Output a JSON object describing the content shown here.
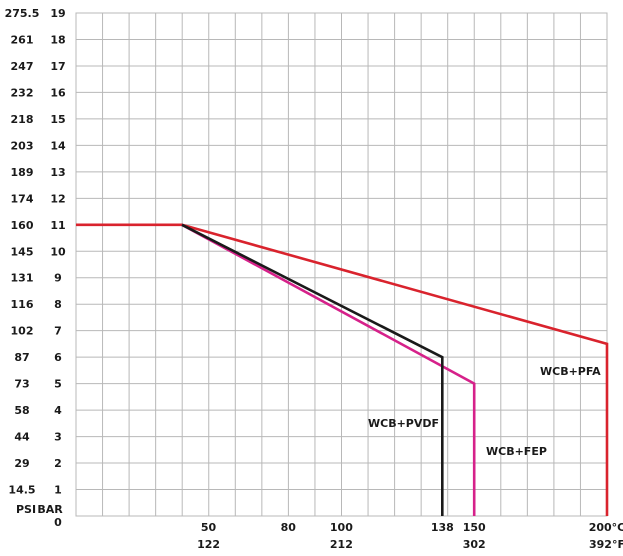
{
  "chart_data": {
    "type": "line",
    "title": "",
    "xlabel": "",
    "ylabel": "",
    "y_axis": {
      "bar_title": "BAR",
      "psi_title": "PSI",
      "bar_ticks": [
        "19",
        "18",
        "17",
        "16",
        "15",
        "14",
        "13",
        "12",
        "11",
        "10",
        "9",
        "8",
        "7",
        "6",
        "5",
        "4",
        "3",
        "2",
        "1"
      ],
      "psi_ticks": [
        "275.5",
        "261",
        "247",
        "232",
        "218",
        "203",
        "189",
        "174",
        "160",
        "145",
        "131",
        "116",
        "102",
        "87",
        "73",
        "58",
        "44",
        "29",
        "14.5"
      ],
      "zero_label": "0",
      "ylim": [
        0,
        19
      ]
    },
    "x_axis": {
      "ticks": [
        {
          "value": 50,
          "c": "50",
          "f": "122"
        },
        {
          "value": 80,
          "c": "80",
          "f": ""
        },
        {
          "value": 100,
          "c": "100",
          "f": "212"
        },
        {
          "value": 138,
          "c": "138",
          "f": ""
        },
        {
          "value": 150,
          "c": "150",
          "f": "302"
        },
        {
          "value": 200,
          "c": "200°C",
          "f": "392°F"
        }
      ],
      "xlim": [
        0,
        200
      ]
    },
    "grid": true,
    "series": [
      {
        "name": "WCB+PFA",
        "color": "#d9232d",
        "x": [
          -20,
          40,
          200,
          200
        ],
        "y": [
          11,
          11,
          6.5,
          0
        ]
      },
      {
        "name": "WCB+FEP",
        "color": "#d6218a",
        "x": [
          40,
          150,
          150
        ],
        "y": [
          11,
          5,
          0
        ]
      },
      {
        "name": "WCB+PVDF",
        "color": "#1a1a1a",
        "x": [
          40,
          138,
          138
        ],
        "y": [
          11,
          6,
          0
        ]
      }
    ],
    "labels": {
      "pfa": "WCB+PFA",
      "fep": "WCB+FEP",
      "pvdf": "WCB+PVDF"
    }
  }
}
